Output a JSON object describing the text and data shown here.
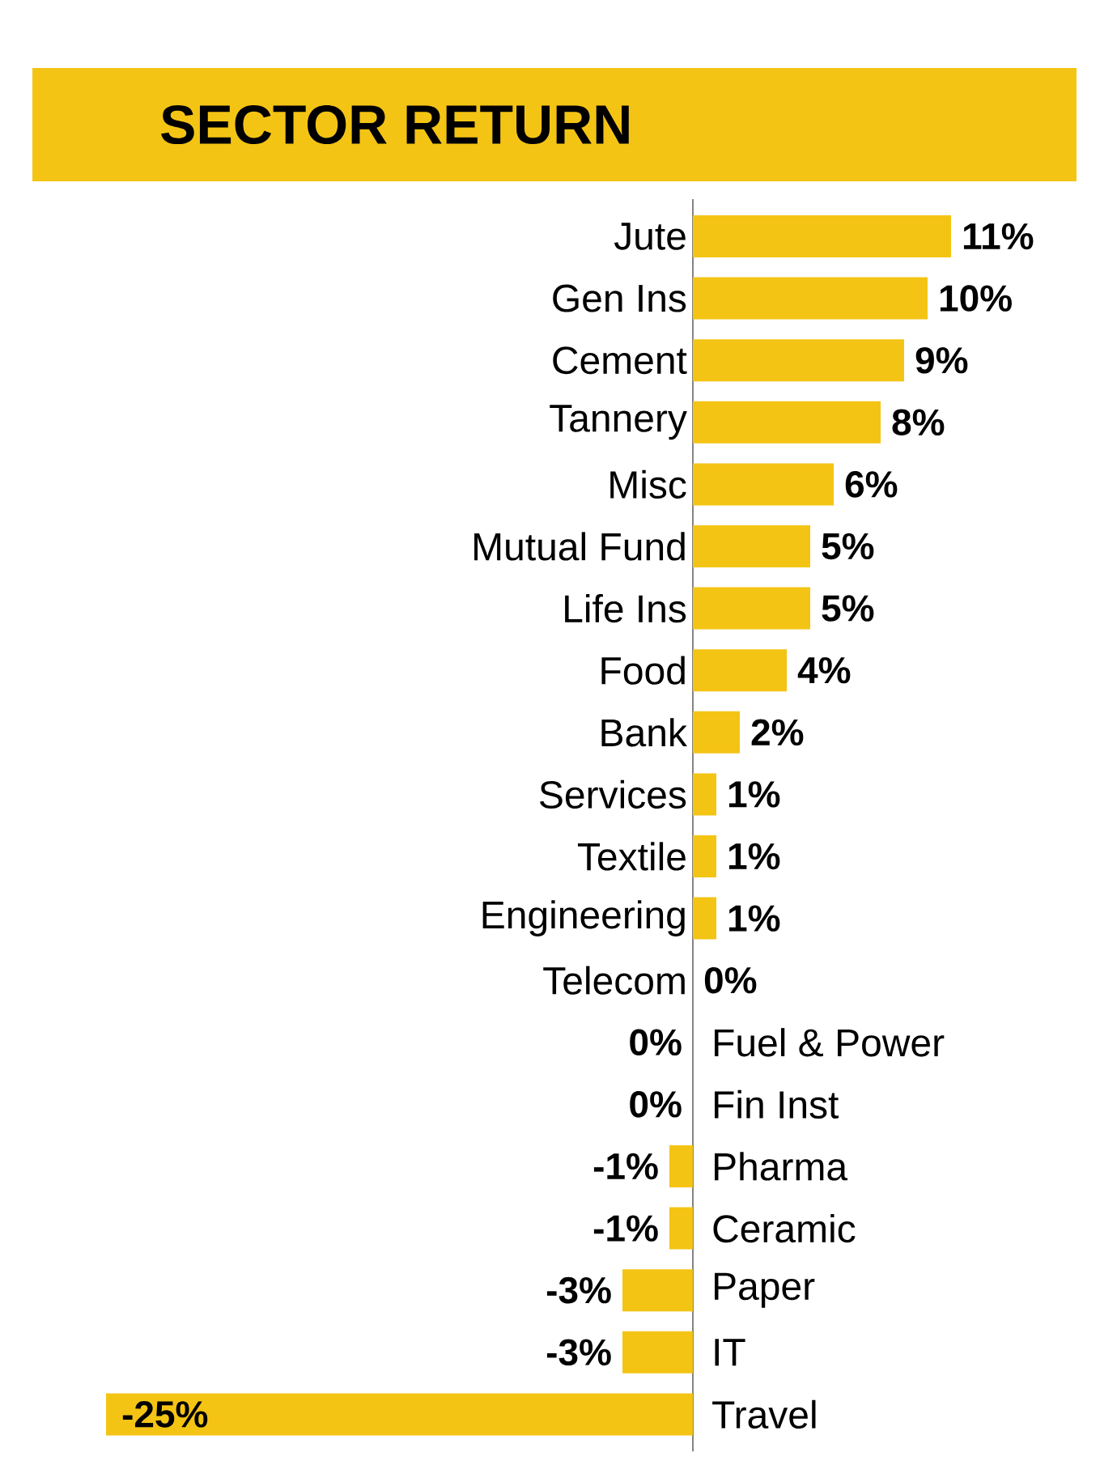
{
  "chart_data": {
    "type": "bar",
    "orientation": "horizontal",
    "title": "SECTOR RETURN",
    "color": "#f4c414",
    "categories": [
      "Jute",
      "Gen Ins",
      "Cement",
      "Tannery",
      "Misc",
      "Mutual Fund",
      "Life Ins",
      "Food",
      "Bank",
      "Services",
      "Textile",
      "Engineering",
      "Telecom",
      "Fuel & Power",
      "Fin Inst",
      "Pharma",
      "Ceramic",
      "Paper",
      "IT",
      "Travel"
    ],
    "values": [
      11,
      10,
      9,
      8,
      6,
      5,
      5,
      4,
      2,
      1,
      1,
      1,
      0,
      -0.0,
      -0.0,
      -1,
      -1,
      -3,
      -3,
      -25
    ],
    "value_labels": [
      "11%",
      "10%",
      "9%",
      "8%",
      "6%",
      "5%",
      "5%",
      "4%",
      "2%",
      "1%",
      "1%",
      "1%",
      "0%",
      "0%",
      "0%",
      "-1%",
      "-1%",
      "-3%",
      "-3%",
      "-25%"
    ]
  }
}
